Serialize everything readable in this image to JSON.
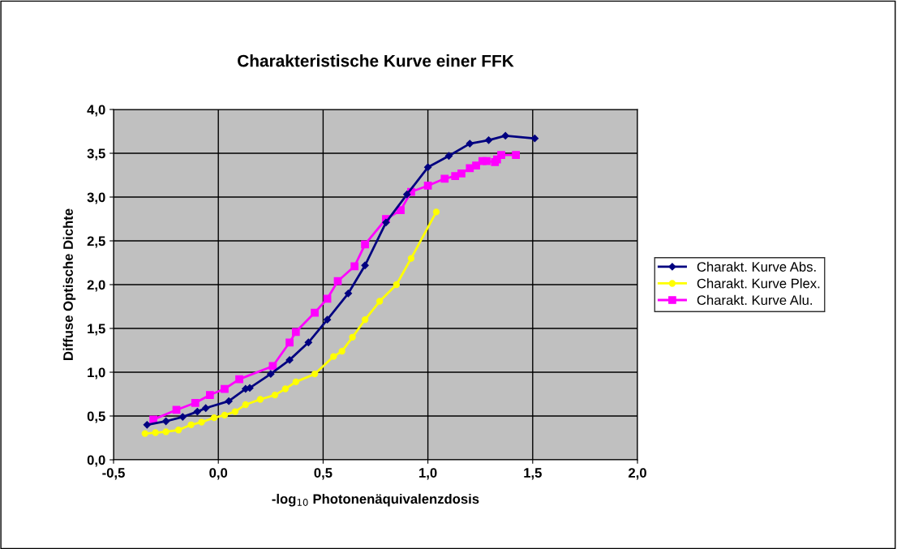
{
  "chart_data": {
    "type": "line",
    "title": "Charakteristische Kurve einer FFK",
    "xlabel": "-log$_{10}$ Photonenäquivalenzdosis",
    "ylabel": "Diffuse Optische Dichte",
    "xlim": [
      -0.5,
      2.0
    ],
    "xticks": [
      {
        "value": -0.5,
        "label": "-0,5"
      },
      {
        "value": 0.0,
        "label": "0,0"
      },
      {
        "value": 0.5,
        "label": "0,5"
      },
      {
        "value": 1.0,
        "label": "1,0"
      },
      {
        "value": 1.5,
        "label": "1,5"
      },
      {
        "value": 2.0,
        "label": "2,0"
      }
    ],
    "ylim": [
      0.0,
      4.0
    ],
    "yticks": [
      {
        "value": 0.0,
        "label": "0,0"
      },
      {
        "value": 0.5,
        "label": "0,5"
      },
      {
        "value": 1.0,
        "label": "1,0"
      },
      {
        "value": 1.5,
        "label": "1,5"
      },
      {
        "value": 2.0,
        "label": "2,0"
      },
      {
        "value": 2.5,
        "label": "2,5"
      },
      {
        "value": 3.0,
        "label": "3,0"
      },
      {
        "value": 3.5,
        "label": "3,5"
      },
      {
        "value": 4.0,
        "label": "4,0"
      }
    ],
    "grid": true,
    "legend": "right",
    "line_style": "solid",
    "series": [
      {
        "name": "Charakt. Kurve Abs.",
        "color": "#000080",
        "marker": "diamond",
        "x": [
          -0.34,
          -0.25,
          -0.17,
          -0.1,
          -0.06,
          0.05,
          0.13,
          0.15,
          0.25,
          0.34,
          0.43,
          0.52,
          0.62,
          0.7,
          0.8,
          0.9,
          1.0,
          1.1,
          1.2,
          1.29,
          1.37,
          1.51
        ],
        "values": [
          0.4,
          0.44,
          0.49,
          0.55,
          0.59,
          0.67,
          0.81,
          0.82,
          0.98,
          1.14,
          1.34,
          1.6,
          1.9,
          2.22,
          2.71,
          3.03,
          3.34,
          3.47,
          3.61,
          3.65,
          3.7,
          3.67
        ]
      },
      {
        "name": "Charakt. Kurve Plex.",
        "color": "#ffff00",
        "marker": "circle",
        "x": [
          -0.35,
          -0.3,
          -0.25,
          -0.19,
          -0.13,
          -0.08,
          -0.02,
          0.03,
          0.08,
          0.13,
          0.2,
          0.27,
          0.32,
          0.37,
          0.46,
          0.55,
          0.59,
          0.64,
          0.7,
          0.77,
          0.85,
          0.92,
          1.04
        ],
        "values": [
          0.3,
          0.31,
          0.32,
          0.34,
          0.4,
          0.43,
          0.48,
          0.51,
          0.55,
          0.63,
          0.69,
          0.74,
          0.81,
          0.89,
          0.98,
          1.18,
          1.24,
          1.4,
          1.6,
          1.81,
          2.0,
          2.3,
          2.83
        ]
      },
      {
        "name": "Charakt. Kurve Alu.",
        "color": "#ff00ff",
        "marker": "square",
        "x": [
          -0.31,
          -0.2,
          -0.11,
          -0.04,
          0.03,
          0.1,
          0.26,
          0.34,
          0.37,
          0.46,
          0.52,
          0.57,
          0.65,
          0.7,
          0.8,
          0.87,
          0.92,
          1.0,
          1.08,
          1.13,
          1.16,
          1.2,
          1.23,
          1.26,
          1.28,
          1.32,
          1.33,
          1.35,
          1.42
        ],
        "values": [
          0.46,
          0.57,
          0.65,
          0.74,
          0.81,
          0.92,
          1.07,
          1.34,
          1.46,
          1.68,
          1.84,
          2.04,
          2.21,
          2.46,
          2.75,
          2.85,
          3.06,
          3.13,
          3.21,
          3.24,
          3.27,
          3.33,
          3.36,
          3.41,
          3.41,
          3.4,
          3.43,
          3.48,
          3.48
        ]
      }
    ]
  }
}
